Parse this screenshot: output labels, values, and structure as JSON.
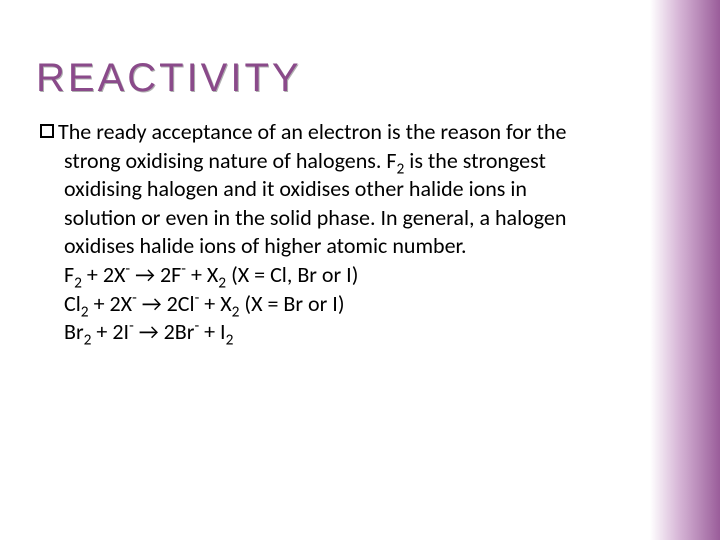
{
  "slide": {
    "title": "REACTIVITY",
    "body_text": "The ready acceptance of an electron is the reason for the strong oxidising nature of halogens. F",
    "body_text2": " is the strongest oxidising halogen and it oxidises other halide ions in solution or even in the solid phase. In general, a halogen oxidises halide ions of higher atomic number.",
    "eq1_a": "F",
    "eq1_b": " + 2X",
    "eq1_c": " → 2F",
    "eq1_d": " + X",
    "eq1_e": " (X = Cl, Br or I)",
    "eq2_a": "Cl",
    "eq2_b": " + 2X",
    "eq2_c": " → 2Cl",
    "eq2_d": " + X",
    "eq2_e": " (X = Br or I)",
    "eq3_a": "Br",
    "eq3_b": " + 2I",
    "eq3_c": " → 2Br",
    "eq3_d": " + I",
    "sub2": "2",
    "supminus": "-"
  },
  "style": {
    "title_color": "#8a4a8a",
    "gradient_start": "#ffffff",
    "gradient_mid": "#d8b8d8",
    "gradient_end": "#9a5d9a",
    "body_fontsize": 22,
    "title_fontsize": 40
  }
}
